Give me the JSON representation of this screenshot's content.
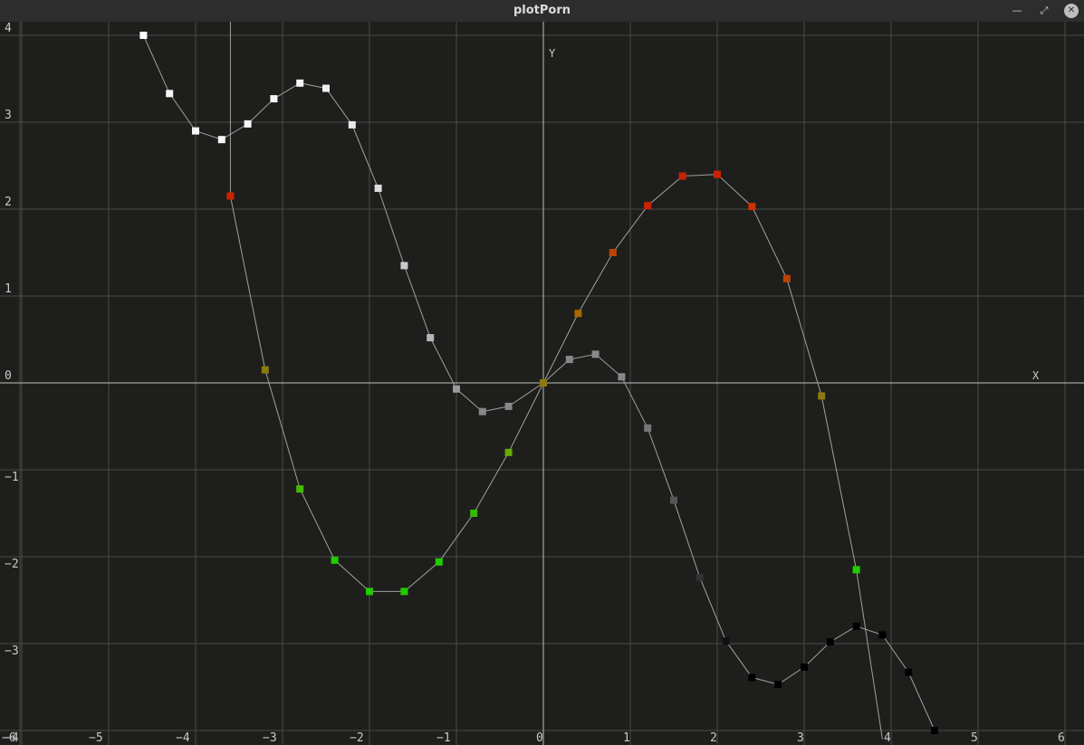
{
  "window": {
    "title": "plotPorn",
    "minimize_glyph": "—",
    "maximize_glyph": "⤢",
    "close_glyph": "✕"
  },
  "colors": {
    "background": "#1e1f1c",
    "grid": "#4a4b48",
    "axis": "#bdbdbd",
    "curve": "#a0a0a0"
  },
  "chart_data": {
    "type": "scatter",
    "title": "",
    "xlabel": "X",
    "ylabel": "Y",
    "xlim": [
      -6.25,
      6.2
    ],
    "ylim": [
      -4.1,
      4.2
    ],
    "grid": true,
    "x_ticks": [
      -6,
      -5,
      -4,
      -3,
      -2,
      -1,
      0,
      1,
      2,
      3,
      4,
      5,
      6
    ],
    "y_ticks": [
      -4,
      -3,
      -2,
      -1,
      0,
      1,
      2,
      3,
      4
    ],
    "series": [
      {
        "points": [
          {
            "x": -3.6,
            "y": 4.2,
            "color": null
          },
          {
            "x": -3.6,
            "y": 2.15,
            "color": "#cc2200"
          },
          {
            "x": -3.2,
            "y": 0.15,
            "color": "#8a7a10"
          },
          {
            "x": -2.8,
            "y": -1.22,
            "color": "#44bb00"
          },
          {
            "x": -2.4,
            "y": -2.04,
            "color": "#22cc00"
          },
          {
            "x": -2.0,
            "y": -2.4,
            "color": "#22cc00"
          },
          {
            "x": -1.6,
            "y": -2.4,
            "color": "#22cc00"
          },
          {
            "x": -1.2,
            "y": -2.06,
            "color": "#22cc00"
          },
          {
            "x": -0.8,
            "y": -1.5,
            "color": "#33bb00"
          },
          {
            "x": -0.4,
            "y": -0.8,
            "color": "#66aa00"
          },
          {
            "x": 0.0,
            "y": 0.0,
            "color": "#8a7a10"
          },
          {
            "x": 0.4,
            "y": 0.8,
            "color": "#aa6600"
          },
          {
            "x": 0.8,
            "y": 1.5,
            "color": "#bb4400"
          },
          {
            "x": 1.2,
            "y": 2.04,
            "color": "#cc2200"
          },
          {
            "x": 1.6,
            "y": 2.38,
            "color": "#cc2200"
          },
          {
            "x": 2.0,
            "y": 2.4,
            "color": "#cc2200"
          },
          {
            "x": 2.4,
            "y": 2.03,
            "color": "#cc3300"
          },
          {
            "x": 2.8,
            "y": 1.2,
            "color": "#bb4400"
          },
          {
            "x": 3.2,
            "y": -0.15,
            "color": "#8a7a10"
          },
          {
            "x": 3.6,
            "y": -2.15,
            "color": "#22cc00"
          },
          {
            "x": 3.9,
            "y": -4.1,
            "color": null
          }
        ]
      },
      {
        "points": [
          {
            "x": -4.6,
            "y": 4.0,
            "color": "#ffffff"
          },
          {
            "x": -4.3,
            "y": 3.33,
            "color": "#f5f5f5"
          },
          {
            "x": -4.0,
            "y": 2.9,
            "color": "#f5f5f5"
          },
          {
            "x": -3.7,
            "y": 2.8,
            "color": "#f5f5f5"
          },
          {
            "x": -3.4,
            "y": 2.98,
            "color": "#f5f5f5"
          },
          {
            "x": -3.1,
            "y": 3.27,
            "color": "#f5f5f5"
          },
          {
            "x": -2.8,
            "y": 3.45,
            "color": "#f5f5f5"
          },
          {
            "x": -2.5,
            "y": 3.39,
            "color": "#f0f0f0"
          },
          {
            "x": -2.2,
            "y": 2.97,
            "color": "#e8e8e8"
          },
          {
            "x": -1.9,
            "y": 2.24,
            "color": "#dddddd"
          },
          {
            "x": -1.6,
            "y": 1.35,
            "color": "#cccccc"
          },
          {
            "x": -1.3,
            "y": 0.52,
            "color": "#b5b5b5"
          },
          {
            "x": -1.0,
            "y": -0.07,
            "color": "#999999"
          },
          {
            "x": -0.7,
            "y": -0.33,
            "color": "#888888"
          },
          {
            "x": -0.4,
            "y": -0.27,
            "color": "#888888"
          },
          {
            "x": 0.0,
            "y": 0.0,
            "color": "#8a7a10"
          },
          {
            "x": 0.3,
            "y": 0.27,
            "color": "#888888"
          },
          {
            "x": 0.6,
            "y": 0.33,
            "color": "#888888"
          },
          {
            "x": 0.9,
            "y": 0.07,
            "color": "#888888"
          },
          {
            "x": 1.2,
            "y": -0.52,
            "color": "#777777"
          },
          {
            "x": 1.5,
            "y": -1.35,
            "color": "#555555"
          },
          {
            "x": 1.8,
            "y": -2.24,
            "color": "#333333"
          },
          {
            "x": 2.1,
            "y": -2.97,
            "color": "#111111"
          },
          {
            "x": 2.4,
            "y": -3.39,
            "color": "#000000"
          },
          {
            "x": 2.7,
            "y": -3.47,
            "color": "#000000"
          },
          {
            "x": 3.0,
            "y": -3.27,
            "color": "#000000"
          },
          {
            "x": 3.3,
            "y": -2.98,
            "color": "#000000"
          },
          {
            "x": 3.6,
            "y": -2.8,
            "color": "#000000"
          },
          {
            "x": 3.9,
            "y": -2.9,
            "color": "#000000"
          },
          {
            "x": 4.2,
            "y": -3.33,
            "color": "#000000"
          },
          {
            "x": 4.5,
            "y": -4.0,
            "color": "#000000"
          }
        ]
      }
    ]
  }
}
